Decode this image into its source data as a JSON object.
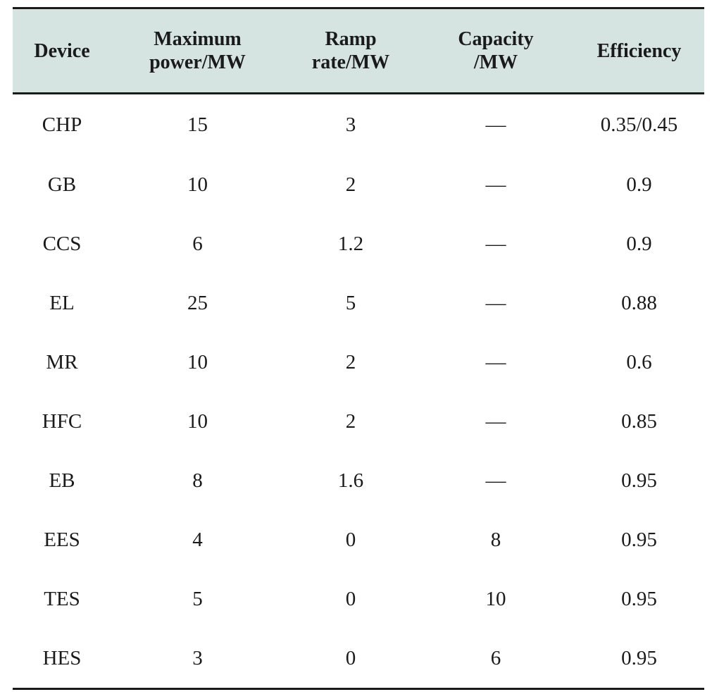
{
  "table": {
    "headers": [
      {
        "line1": "Device",
        "line2": ""
      },
      {
        "line1": "Maximum",
        "line2": "power/MW"
      },
      {
        "line1": "Ramp",
        "line2": "rate/MW"
      },
      {
        "line1": "Capacity",
        "line2": "/MW"
      },
      {
        "line1": "Efficiency",
        "line2": ""
      }
    ],
    "rows": [
      [
        "CHP",
        "15",
        "3",
        "—",
        "0.35/0.45"
      ],
      [
        "GB",
        "10",
        "2",
        "—",
        "0.9"
      ],
      [
        "CCS",
        "6",
        "1.2",
        "—",
        "0.9"
      ],
      [
        "EL",
        "25",
        "5",
        "—",
        "0.88"
      ],
      [
        "MR",
        "10",
        "2",
        "—",
        "0.6"
      ],
      [
        "HFC",
        "10",
        "2",
        "—",
        "0.85"
      ],
      [
        "EB",
        "8",
        "1.6",
        "—",
        "0.95"
      ],
      [
        "EES",
        "4",
        "0",
        "8",
        "0.95"
      ],
      [
        "TES",
        "5",
        "0",
        "10",
        "0.95"
      ],
      [
        "HES",
        "3",
        "0",
        "6",
        "0.95"
      ]
    ]
  },
  "colors": {
    "header_background": "#d6e4e1",
    "rule": "#1a1a1a"
  }
}
